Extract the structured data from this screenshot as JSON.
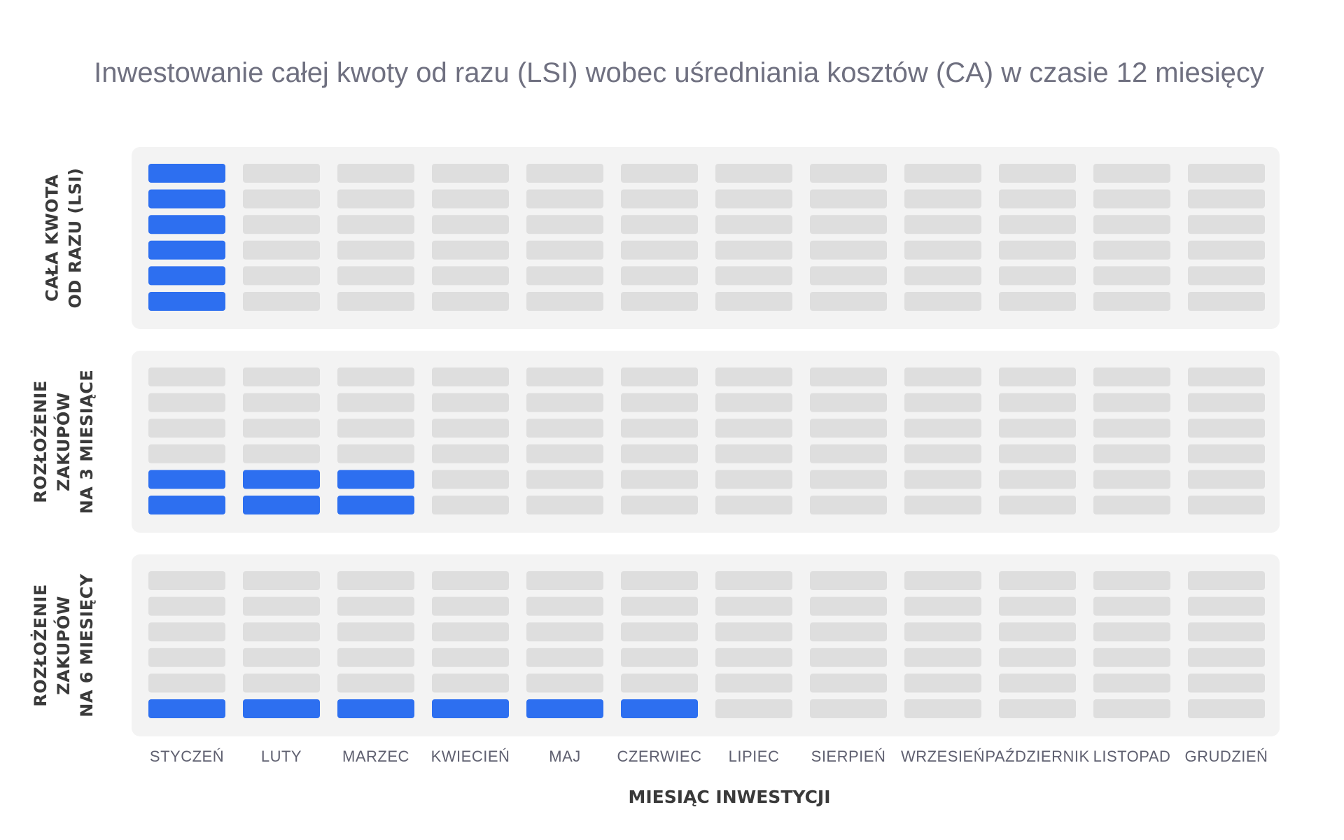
{
  "chart_data": {
    "type": "heatmap",
    "title": "Inwestowanie całej kwoty od razu (LSI) wobec uśredniania kosztów (CA) w czasie 12 miesięcy",
    "xlabel": "MIESIĄC INWESTYCJI",
    "categories": [
      "STYCZEŃ",
      "LUTY",
      "MARZEC",
      "KWIECIEŃ",
      "MAJ",
      "CZERWIEC",
      "LIPIEC",
      "SIERPIEŃ",
      "WRZESIEŃ",
      "PAŹDZIERNIK",
      "LISTOPAD",
      "GRUDZIEŃ"
    ],
    "units_per_column": 6,
    "series": [
      {
        "label_lines": [
          "CAŁA KWOTA",
          "OD RAZU (LSI)"
        ],
        "values": [
          6,
          0,
          0,
          0,
          0,
          0,
          0,
          0,
          0,
          0,
          0,
          0
        ]
      },
      {
        "label_lines": [
          "ROZŁOŻENIE",
          "ZAKUPÓW",
          "NA 3 MIESIĄCE"
        ],
        "values": [
          2,
          2,
          2,
          0,
          0,
          0,
          0,
          0,
          0,
          0,
          0,
          0
        ]
      },
      {
        "label_lines": [
          "ROZŁOŻENIE",
          "ZAKUPÓW",
          "NA 6 MIESIĘCY"
        ],
        "values": [
          1,
          1,
          1,
          1,
          1,
          1,
          0,
          0,
          0,
          0,
          0,
          0
        ]
      }
    ],
    "colors": {
      "filled": "#2d6ff0",
      "empty": "#dedede",
      "panel": "#f3f3f3"
    }
  }
}
